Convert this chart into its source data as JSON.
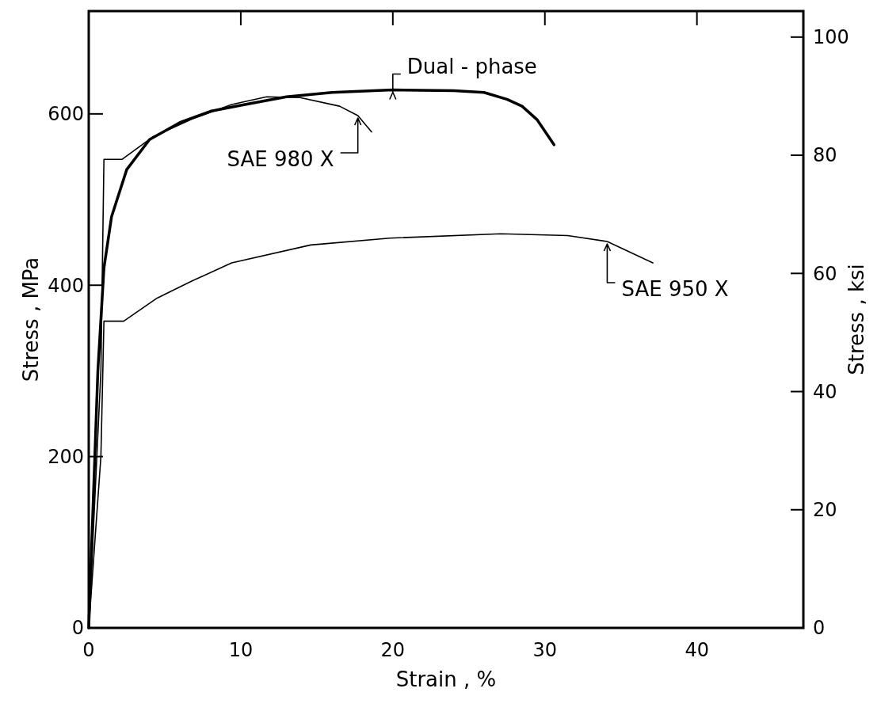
{
  "chart_data": {
    "type": "line",
    "xlabel": "Strain , %",
    "ylabel": "Stress , MPa",
    "y2label": "Stress , ksi",
    "xlim": [
      0,
      47
    ],
    "xticks": [
      0,
      10,
      20,
      30,
      40
    ],
    "ylim": [
      0,
      720
    ],
    "yticks": [
      0,
      200,
      400,
      600
    ],
    "y2lim": [
      0,
      104.4
    ],
    "y2ticks": [
      0,
      20,
      40,
      60,
      80,
      100
    ],
    "grid": false,
    "marker": "none",
    "line_style": "solid",
    "annotations": [
      {
        "text": "Dual - phase",
        "x": 20,
        "y": 628
      },
      {
        "text": "SAE 980 X",
        "x": 17.7,
        "y": 598
      },
      {
        "text": "SAE 950 X",
        "x": 34.1,
        "y": 451
      }
    ],
    "series": [
      {
        "color": "#000000",
        "x": [
          0,
          0.3,
          0.6,
          1.0,
          1.5,
          2.5,
          4,
          6,
          8,
          10,
          13,
          16,
          20,
          24,
          26,
          27.5,
          28.5,
          29.5,
          30.6
        ],
        "values": [
          0,
          150,
          300,
          420,
          480,
          535,
          570,
          590,
          603,
          610,
          620,
          625,
          628,
          627,
          625,
          617,
          609,
          593,
          564
        ]
      },
      {
        "color": "#000000",
        "x": [
          0,
          0.8,
          1.0,
          2.2,
          4.2,
          6.8,
          9.4,
          11.7,
          13.9,
          16.5,
          17.7,
          18.6
        ],
        "values": [
          0,
          300,
          547,
          547,
          573,
          594,
          611,
          620,
          619,
          609,
          598,
          579
        ]
      },
      {
        "color": "#000000",
        "x": [
          0,
          0.8,
          1.0,
          2.3,
          4.5,
          6.8,
          9.4,
          14.6,
          19.8,
          27.1,
          31.5,
          34.1,
          37.1
        ],
        "values": [
          0,
          200,
          358,
          358,
          385,
          405,
          426,
          447,
          455,
          460,
          458,
          451,
          426
        ]
      }
    ]
  }
}
